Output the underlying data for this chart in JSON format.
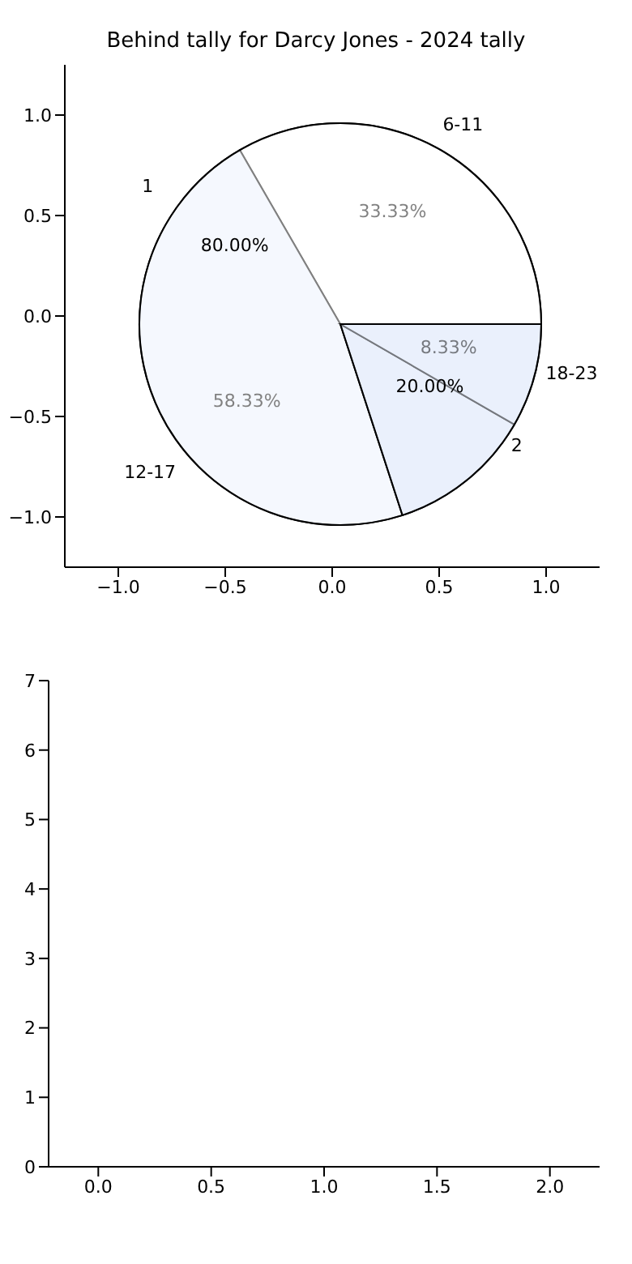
{
  "chart_data": [
    {
      "type": "pie",
      "title": "Behind tally for Darcy Jones - 2024 tally",
      "categories": [
        "6-11",
        "12-17",
        "18-23"
      ],
      "values": [
        33.33,
        58.33,
        8.33
      ],
      "colors": [
        "#ffffff",
        "#eaf0fc",
        "#eaf0fc"
      ],
      "value_labels": [
        "33.33%",
        "58.33%",
        "8.33%"
      ]
    },
    {
      "type": "pie",
      "categories": [
        "1",
        "2"
      ],
      "values": [
        80,
        20
      ],
      "colors": [
        "#ffffff",
        "#eaf0fc"
      ],
      "value_labels": [
        "80.00%",
        "20.00%"
      ]
    },
    {
      "type": "bar",
      "xlim": [
        -1.25,
        1.25
      ],
      "ylim": [
        -1.25,
        1.25
      ],
      "xticks": [
        {
          "value": -1,
          "label": "−1.0"
        },
        {
          "value": -0.5,
          "label": "−0.5"
        },
        {
          "value": 0,
          "label": "0.0"
        },
        {
          "value": 0.5,
          "label": "0.5"
        },
        {
          "value": 1,
          "label": "1.0"
        }
      ],
      "yticks": [
        {
          "value": -1,
          "label": "−1.0"
        },
        {
          "value": -0.5,
          "label": "−0.5"
        },
        {
          "value": 0,
          "label": "0.0"
        },
        {
          "value": 0.5,
          "label": "0.5"
        },
        {
          "value": 1,
          "label": "1.0"
        }
      ]
    },
    {
      "type": "bar",
      "xlim": [
        -0.22,
        2.22
      ],
      "ylim": [
        0,
        7
      ],
      "xticks": [
        {
          "value": 0,
          "label": "0.0"
        },
        {
          "value": 0.5,
          "label": "0.5"
        },
        {
          "value": 1,
          "label": "1.0"
        },
        {
          "value": 1.5,
          "label": "1.5"
        },
        {
          "value": 2,
          "label": "2.0"
        }
      ],
      "yticks": [
        0,
        1,
        2,
        3,
        4,
        5,
        6,
        7
      ]
    }
  ]
}
